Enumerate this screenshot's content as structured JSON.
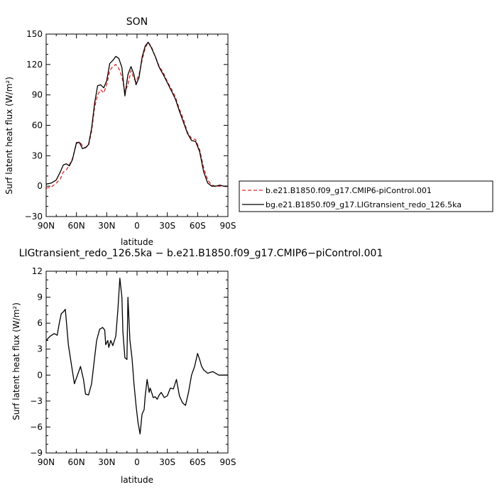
{
  "chart_data": [
    {
      "type": "line",
      "title": "SON",
      "xlabel": "latitude",
      "ylabel": "Surf latent heat flux (W/m²)",
      "xlim": [
        90,
        -90
      ],
      "ylim": [
        -30,
        150
      ],
      "x_ticks": [
        90,
        60,
        30,
        0,
        -30,
        -60,
        -90
      ],
      "x_tick_labels": [
        "90N",
        "60N",
        "30N",
        "0",
        "30S",
        "60S",
        "90S"
      ],
      "y_ticks": [
        -30,
        0,
        30,
        60,
        90,
        120,
        150
      ],
      "y_tick_labels": [
        "−30",
        "0",
        "30",
        "60",
        "90",
        "120",
        "150"
      ],
      "legend": "outside-right",
      "series": [
        {
          "name": "b.e21.B1850.f09_g17.CMIP6-piControl.001",
          "color": "#e8231e",
          "dash": "dashed",
          "x": [
            90,
            85,
            80,
            76,
            73,
            70,
            67,
            64,
            60,
            57,
            54,
            51,
            48,
            45,
            42,
            39,
            36,
            33,
            30,
            27,
            24,
            21,
            18,
            15,
            12,
            9,
            6,
            3,
            1,
            -2,
            -5,
            -8,
            -11,
            -14,
            -18,
            -22,
            -26,
            -30,
            -34,
            -38,
            -42,
            -46,
            -50,
            -54,
            -58,
            -62,
            -66,
            -70,
            -74,
            -78,
            -82,
            -86,
            -90
          ],
          "y": [
            -2,
            -1,
            3,
            7,
            14,
            16,
            21,
            27,
            42,
            44,
            40,
            38,
            40,
            54,
            78,
            90,
            95,
            92,
            100,
            114,
            118,
            120,
            116,
            108,
            93,
            100,
            114,
            106,
            103,
            110,
            124,
            136,
            142,
            138,
            128,
            118,
            112,
            103,
            96,
            88,
            76,
            66,
            53,
            47,
            46,
            36,
            18,
            6,
            1,
            0,
            0,
            0,
            -1
          ]
        },
        {
          "name": "bg.e21.B1850.f09_g17.LIGtransient_redo_126.5ka",
          "color": "#000000",
          "dash": "solid",
          "x": [
            90,
            85,
            80,
            76,
            73,
            70,
            67,
            64,
            60,
            57,
            54,
            51,
            48,
            45,
            42,
            39,
            36,
            33,
            30,
            27,
            24,
            21,
            18,
            15,
            12,
            9,
            6,
            3,
            1,
            -2,
            -5,
            -8,
            -11,
            -14,
            -18,
            -22,
            -26,
            -30,
            -34,
            -38,
            -42,
            -46,
            -50,
            -54,
            -58,
            -62,
            -66,
            -70,
            -74,
            -78,
            -82,
            -86,
            -90
          ],
          "y": [
            2,
            3,
            6,
            14,
            21,
            22,
            20,
            26,
            43,
            43,
            37,
            38,
            41,
            57,
            82,
            99,
            100,
            97,
            104,
            121,
            124,
            128,
            126,
            117,
            89,
            110,
            118,
            110,
            100,
            107,
            127,
            138,
            142,
            137,
            128,
            117,
            110,
            102,
            94,
            86,
            74,
            63,
            52,
            45,
            44,
            34,
            14,
            3,
            0,
            0,
            1,
            0,
            0
          ]
        }
      ]
    },
    {
      "type": "line",
      "title": "LIGtransient_redo_126.5ka − b.e21.B1850.f09_g17.CMIP6−piControl.001",
      "xlabel": "latitude",
      "ylabel": "Surf latent heat flux (W/m²)",
      "xlim": [
        90,
        -90
      ],
      "ylim": [
        -9,
        12
      ],
      "x_ticks": [
        90,
        60,
        30,
        0,
        -30,
        -60,
        -90
      ],
      "x_tick_labels": [
        "90N",
        "60N",
        "30N",
        "0",
        "30S",
        "60S",
        "90S"
      ],
      "y_ticks": [
        -9,
        -6,
        -3,
        0,
        3,
        6,
        9,
        12
      ],
      "y_tick_labels": [
        "−9",
        "−6",
        "−3",
        "0",
        "3",
        "6",
        "9",
        "12"
      ],
      "series": [
        {
          "color": "#000000",
          "x": [
            90,
            86,
            82,
            79,
            77,
            75,
            73,
            71,
            68,
            65,
            62,
            59,
            56,
            53,
            51,
            48,
            45,
            43,
            40,
            37,
            34,
            32,
            31,
            29,
            28,
            26,
            24,
            21,
            19,
            17,
            15,
            14,
            12,
            10,
            9,
            7,
            5,
            3,
            1,
            -1,
            -3,
            -5,
            -7,
            -8,
            -10,
            -12,
            -13,
            -15,
            -16,
            -18,
            -20,
            -22,
            -24,
            -27,
            -30,
            -33,
            -36,
            -39,
            -42,
            -45,
            -48,
            -51,
            -54,
            -57,
            -60,
            -62,
            -64,
            -66,
            -68,
            -70,
            -72,
            -75,
            -78,
            -81,
            -84,
            -87,
            -90
          ],
          "y": [
            4,
            4.5,
            4.8,
            4.6,
            6,
            7.1,
            7.3,
            7.6,
            3.5,
            1.2,
            -1,
            0,
            1,
            -0.5,
            -2.2,
            -2.3,
            -1,
            1,
            4,
            5.3,
            5.5,
            5.2,
            3.5,
            4,
            3.2,
            4,
            3.4,
            4.5,
            7.5,
            11.2,
            9,
            5,
            2,
            1.8,
            9,
            4,
            2,
            -1,
            -3.5,
            -5.5,
            -6.8,
            -4.5,
            -4,
            -2.5,
            -0.5,
            -2,
            -1.5,
            -2.2,
            -2.6,
            -2.5,
            -2.8,
            -2.3,
            -2,
            -2.6,
            -2.4,
            -1.5,
            -1.6,
            -0.5,
            -2.4,
            -3.2,
            -3.5,
            -2,
            0,
            1,
            2.5,
            1.8,
            1,
            0.6,
            0.4,
            0.2,
            0.3,
            0.4,
            0.2,
            0,
            0,
            0,
            0
          ]
        }
      ]
    }
  ]
}
